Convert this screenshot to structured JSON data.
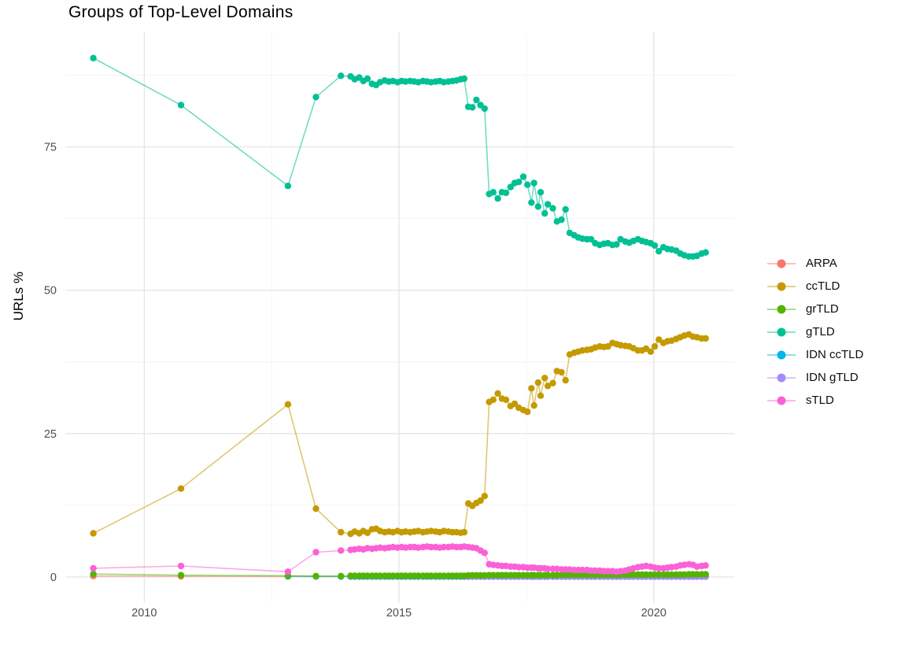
{
  "chart_data": {
    "type": "line",
    "title": "Groups of Top-Level Domains",
    "xlabel": "",
    "ylabel": "URLs %",
    "grid": "on",
    "legend_position": "right",
    "marker": "point",
    "x_ticks": [
      2010,
      2015,
      2020
    ],
    "x_minor_gridlines": [
      2012.5,
      2017.5
    ],
    "y_ticks": [
      0,
      25,
      50,
      75
    ],
    "y_minor_gridlines": [
      12.5,
      37.5,
      62.5,
      87.5
    ],
    "xlim": [
      2008.45,
      2021.58
    ],
    "ylim": [
      -4.55,
      95.0
    ],
    "colors": {
      "ARPA": "#F8766D",
      "ccTLD": "#C49A00",
      "grTLD": "#53B400",
      "gTLD": "#00C094",
      "IDN ccTLD": "#00B6EB",
      "IDN gTLD": "#A58AFF",
      "sTLD": "#FB61D7",
      "grid_major": "#e5e5e5",
      "grid_minor": "#f2f2f2",
      "tick_label": "#4d4d4d"
    },
    "draw_order": [
      "ARPA",
      "IDN ccTLD",
      "IDN gTLD",
      "grTLD",
      "ccTLD",
      "gTLD",
      "sTLD"
    ],
    "x": [
      2009.0,
      2010.72,
      2012.82,
      2013.37,
      2013.86,
      2014.05,
      2014.13,
      2014.22,
      2014.3,
      2014.38,
      2014.47,
      2014.55,
      2014.63,
      2014.72,
      2014.8,
      2014.88,
      2014.97,
      2015.05,
      2015.13,
      2015.22,
      2015.3,
      2015.38,
      2015.47,
      2015.55,
      2015.63,
      2015.72,
      2015.8,
      2015.88,
      2015.97,
      2016.05,
      2016.13,
      2016.21,
      2016.28,
      2016.36,
      2016.44,
      2016.52,
      2016.6,
      2016.68,
      2016.77,
      2016.85,
      2016.94,
      2017.02,
      2017.1,
      2017.19,
      2017.27,
      2017.35,
      2017.44,
      2017.52,
      2017.6,
      2017.65,
      2017.73,
      2017.78,
      2017.86,
      2017.92,
      2018.02,
      2018.1,
      2018.19,
      2018.27,
      2018.35,
      2018.44,
      2018.52,
      2018.6,
      2018.69,
      2018.77,
      2018.85,
      2018.94,
      2019.02,
      2019.1,
      2019.19,
      2019.27,
      2019.35,
      2019.44,
      2019.52,
      2019.6,
      2019.69,
      2019.77,
      2019.85,
      2019.94,
      2020.02,
      2020.1,
      2020.19,
      2020.27,
      2020.35,
      2020.44,
      2020.52,
      2020.6,
      2020.69,
      2020.77,
      2020.85,
      2020.94,
      2021.02
    ],
    "series": [
      {
        "name": "ARPA",
        "color": "#F8766D",
        "values": [
          0.15,
          0.1,
          0.08,
          0.06,
          0.05,
          0.05,
          0.05,
          0.05,
          0.05,
          0.05,
          0.05,
          0.05,
          0.05,
          0.05,
          0.05,
          0.05,
          0.05,
          0.05,
          0.05,
          0.05,
          0.05,
          0.05,
          0.05,
          0.05,
          0.05,
          0.05,
          0.05,
          0.05,
          0.05,
          0.05,
          0.05,
          0.05,
          0.05,
          0.05,
          0.05,
          0.05,
          0.05,
          0.05,
          0.05,
          0.05,
          0.05,
          0.05,
          0.05,
          0.05,
          0.05,
          0.05,
          0.05,
          0.05,
          0.05,
          0.05,
          0.05,
          0.05,
          0.05,
          0.05,
          0.05,
          0.05,
          0.05,
          0.05,
          0.05,
          0.05,
          0.05,
          0.05,
          0.05,
          0.05,
          0.05,
          0.05,
          0.05,
          0.05,
          0.05,
          0.05,
          0.05,
          0.05,
          0.05,
          0.05,
          0.05,
          0.05,
          0.05,
          0.05,
          0.05,
          0.05,
          0.05,
          0.05,
          0.05,
          0.05,
          0.05,
          0.05,
          0.05,
          0.05,
          0.05,
          0.05,
          0.05
        ]
      },
      {
        "name": "ccTLD",
        "color": "#C49A00",
        "values": [
          7.6,
          15.4,
          30.1,
          11.9,
          7.8,
          7.5,
          7.9,
          7.6,
          8.0,
          7.7,
          8.3,
          8.4,
          8.0,
          7.8,
          7.9,
          7.8,
          8.0,
          7.8,
          7.9,
          7.8,
          7.9,
          8.0,
          7.8,
          7.9,
          8.0,
          7.9,
          7.8,
          8.0,
          7.9,
          7.8,
          7.8,
          7.7,
          7.8,
          12.8,
          12.4,
          12.9,
          13.3,
          14.1,
          30.5,
          30.9,
          32.0,
          31.1,
          30.9,
          29.8,
          30.2,
          29.5,
          29.1,
          28.8,
          32.9,
          29.9,
          33.9,
          31.6,
          34.7,
          33.3,
          33.8,
          35.9,
          35.7,
          34.3,
          38.8,
          39.1,
          39.3,
          39.5,
          39.6,
          39.7,
          40.0,
          40.2,
          40.1,
          40.2,
          40.8,
          40.6,
          40.4,
          40.3,
          40.2,
          39.9,
          39.5,
          39.5,
          39.8,
          39.3,
          40.2,
          41.4,
          40.8,
          41.1,
          41.2,
          41.5,
          41.8,
          42.1,
          42.3,
          41.9,
          41.8,
          41.6,
          41.6
        ]
      },
      {
        "name": "grTLD",
        "color": "#53B400",
        "values": [
          0.5,
          0.3,
          0.2,
          0.15,
          0.15,
          0.2,
          0.2,
          0.2,
          0.2,
          0.2,
          0.2,
          0.2,
          0.2,
          0.2,
          0.2,
          0.2,
          0.2,
          0.2,
          0.2,
          0.2,
          0.2,
          0.2,
          0.2,
          0.2,
          0.2,
          0.2,
          0.2,
          0.2,
          0.2,
          0.2,
          0.2,
          0.2,
          0.2,
          0.25,
          0.25,
          0.25,
          0.25,
          0.25,
          0.3,
          0.3,
          0.3,
          0.3,
          0.3,
          0.3,
          0.3,
          0.3,
          0.3,
          0.3,
          0.3,
          0.3,
          0.3,
          0.3,
          0.3,
          0.3,
          0.3,
          0.3,
          0.35,
          0.35,
          0.35,
          0.35,
          0.35,
          0.35,
          0.35,
          0.35,
          0.35,
          0.35,
          0.35,
          0.35,
          0.35,
          0.35,
          0.35,
          0.4,
          0.4,
          0.4,
          0.4,
          0.4,
          0.4,
          0.4,
          0.4,
          0.4,
          0.4,
          0.4,
          0.4,
          0.4,
          0.4,
          0.4,
          0.45,
          0.45,
          0.45,
          0.45,
          0.45
        ]
      },
      {
        "name": "gTLD",
        "color": "#00C094",
        "values": [
          90.5,
          82.3,
          68.2,
          83.7,
          87.4,
          87.3,
          86.8,
          87.1,
          86.5,
          86.9,
          86.0,
          85.8,
          86.3,
          86.6,
          86.4,
          86.5,
          86.3,
          86.5,
          86.4,
          86.5,
          86.4,
          86.3,
          86.5,
          86.4,
          86.3,
          86.4,
          86.5,
          86.3,
          86.4,
          86.5,
          86.6,
          86.8,
          86.9,
          82.0,
          81.9,
          83.2,
          82.3,
          81.7,
          66.8,
          67.1,
          66.0,
          67.1,
          67.0,
          68.0,
          68.7,
          68.9,
          69.8,
          68.4,
          65.3,
          68.7,
          64.6,
          67.1,
          63.4,
          65.0,
          64.3,
          62.0,
          62.3,
          64.1,
          60.0,
          59.6,
          59.2,
          59.0,
          58.9,
          58.9,
          58.2,
          57.9,
          58.1,
          58.2,
          57.9,
          58.0,
          58.9,
          58.5,
          58.3,
          58.6,
          58.9,
          58.6,
          58.4,
          58.2,
          57.8,
          56.8,
          57.5,
          57.2,
          57.1,
          56.9,
          56.4,
          56.1,
          55.9,
          55.9,
          56.0,
          56.4,
          56.6
        ]
      },
      {
        "name": "IDN ccTLD",
        "color": "#00B6EB",
        "values": [
          null,
          null,
          0.1,
          0.08,
          0.08,
          0.08,
          0.08,
          0.08,
          0.08,
          0.08,
          0.08,
          0.08,
          0.08,
          0.08,
          0.08,
          0.08,
          0.08,
          0.08,
          0.08,
          0.08,
          0.08,
          0.08,
          0.08,
          0.08,
          0.08,
          0.08,
          0.08,
          0.08,
          0.08,
          0.08,
          0.08,
          0.08,
          0.08,
          0.08,
          0.08,
          0.08,
          0.08,
          0.08,
          0.1,
          0.1,
          0.1,
          0.1,
          0.1,
          0.1,
          0.1,
          0.1,
          0.1,
          0.1,
          0.1,
          0.1,
          0.1,
          0.1,
          0.1,
          0.1,
          0.1,
          0.1,
          0.1,
          0.1,
          0.1,
          0.1,
          0.1,
          0.1,
          0.1,
          0.1,
          0.1,
          0.1,
          0.1,
          0.1,
          0.1,
          0.1,
          0.1,
          0.1,
          0.1,
          0.1,
          0.1,
          0.1,
          0.1,
          0.1,
          0.1,
          0.1,
          0.1,
          0.1,
          0.1,
          0.1,
          0.1,
          0.1,
          0.1,
          0.1,
          0.1,
          0.1,
          0.1
        ]
      },
      {
        "name": "IDN gTLD",
        "color": "#A58AFF",
        "values": [
          null,
          null,
          null,
          null,
          null,
          null,
          null,
          null,
          null,
          null,
          null,
          null,
          null,
          null,
          null,
          null,
          null,
          null,
          null,
          null,
          null,
          null,
          null,
          null,
          null,
          null,
          null,
          null,
          null,
          null,
          null,
          null,
          null,
          0.03,
          0.03,
          0.03,
          0.03,
          0.03,
          0.03,
          0.03,
          0.03,
          0.03,
          0.03,
          0.03,
          0.03,
          0.03,
          0.03,
          0.03,
          0.03,
          0.03,
          0.03,
          0.03,
          0.03,
          0.03,
          0.03,
          0.03,
          0.03,
          0.03,
          0.03,
          0.03,
          0.03,
          0.03,
          0.03,
          0.03,
          0.03,
          0.03,
          0.03,
          0.03,
          0.03,
          0.03,
          0.03,
          0.03,
          0.03,
          0.03,
          0.03,
          0.03,
          0.03,
          0.03,
          0.03,
          0.03,
          0.03,
          0.03,
          0.03,
          0.03,
          0.03,
          0.03,
          0.03,
          0.03,
          0.03,
          0.03,
          0.03
        ]
      },
      {
        "name": "sTLD",
        "color": "#FB61D7",
        "values": [
          1.5,
          1.9,
          0.9,
          4.3,
          4.6,
          4.7,
          4.8,
          4.9,
          4.8,
          5.0,
          4.9,
          5.0,
          5.1,
          5.0,
          5.1,
          5.2,
          5.1,
          5.2,
          5.1,
          5.2,
          5.2,
          5.1,
          5.2,
          5.3,
          5.2,
          5.2,
          5.1,
          5.2,
          5.2,
          5.3,
          5.2,
          5.2,
          5.3,
          5.2,
          5.1,
          5.0,
          4.6,
          4.2,
          2.2,
          2.1,
          2.0,
          1.9,
          1.9,
          1.8,
          1.8,
          1.7,
          1.7,
          1.6,
          1.6,
          1.6,
          1.5,
          1.5,
          1.5,
          1.4,
          1.4,
          1.4,
          1.3,
          1.3,
          1.3,
          1.2,
          1.2,
          1.2,
          1.2,
          1.1,
          1.1,
          1.1,
          1.0,
          1.0,
          1.0,
          0.9,
          1.0,
          1.1,
          1.3,
          1.5,
          1.7,
          1.8,
          1.9,
          1.8,
          1.6,
          1.5,
          1.5,
          1.6,
          1.7,
          1.8,
          2.0,
          2.1,
          2.2,
          2.1,
          1.8,
          1.9,
          2.0
        ]
      }
    ],
    "legend": [
      "ARPA",
      "ccTLD",
      "grTLD",
      "gTLD",
      "IDN ccTLD",
      "IDN gTLD",
      "sTLD"
    ]
  }
}
